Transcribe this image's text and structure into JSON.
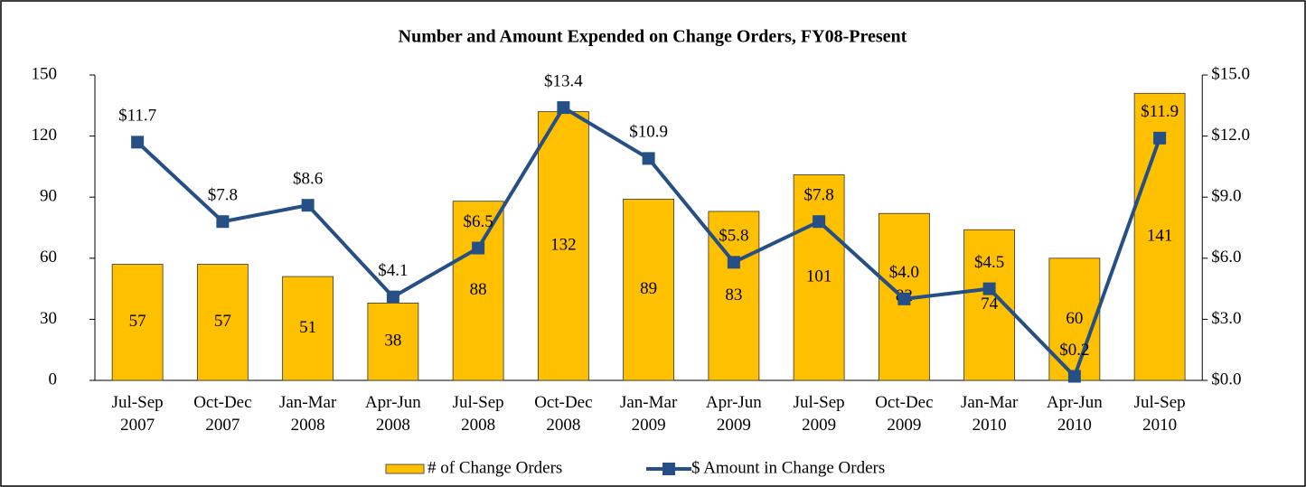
{
  "chart_data": {
    "type": "bar-line",
    "title": "Number and Amount Expended on Change Orders, FY08-Present",
    "categories": [
      "Jul-Sep 2007",
      "Oct-Dec 2007",
      "Jan-Mar 2008",
      "Apr-Jun 2008",
      "Jul-Sep 2008",
      "Oct-Dec 2008",
      "Jan-Mar 2009",
      "Apr-Jun 2009",
      "Jul-Sep 2009",
      "Oct-Dec 2009",
      "Jan-Mar 2010",
      "Apr-Jun 2010",
      "Jul-Sep 2010"
    ],
    "series": [
      {
        "name": "# of Change Orders",
        "type": "bar",
        "color": "#FFC000",
        "values": [
          57,
          57,
          51,
          38,
          88,
          132,
          89,
          83,
          101,
          82,
          74,
          60,
          141
        ]
      },
      {
        "name": "$ Amount in Change Orders",
        "type": "line",
        "axis": "y2",
        "color": "#254F85",
        "values": [
          11.7,
          7.8,
          8.6,
          4.1,
          6.5,
          13.4,
          10.9,
          5.8,
          7.8,
          4.0,
          4.5,
          0.2,
          11.9
        ],
        "value_labels": [
          "$11.7",
          "$7.8",
          "$8.6",
          "$4.1",
          "$6.5",
          "$13.4",
          "$10.9",
          "$5.8",
          "$7.8",
          "$4.0",
          "$4.5",
          "$0.2",
          "$11.9"
        ]
      }
    ],
    "ylim": [
      0,
      150
    ],
    "yticks": [
      0,
      30,
      60,
      90,
      120,
      150
    ],
    "y2lim": [
      0,
      15
    ],
    "y2ticks": [
      {
        "value": 0,
        "label": "$0.0"
      },
      {
        "value": 3,
        "label": "$3.0"
      },
      {
        "value": 6,
        "label": "$6.0"
      },
      {
        "value": 9,
        "label": "$9.0"
      },
      {
        "value": 12,
        "label": "$12.0"
      },
      {
        "value": 15,
        "label": "$15.0"
      }
    ],
    "legend": "bottom"
  }
}
